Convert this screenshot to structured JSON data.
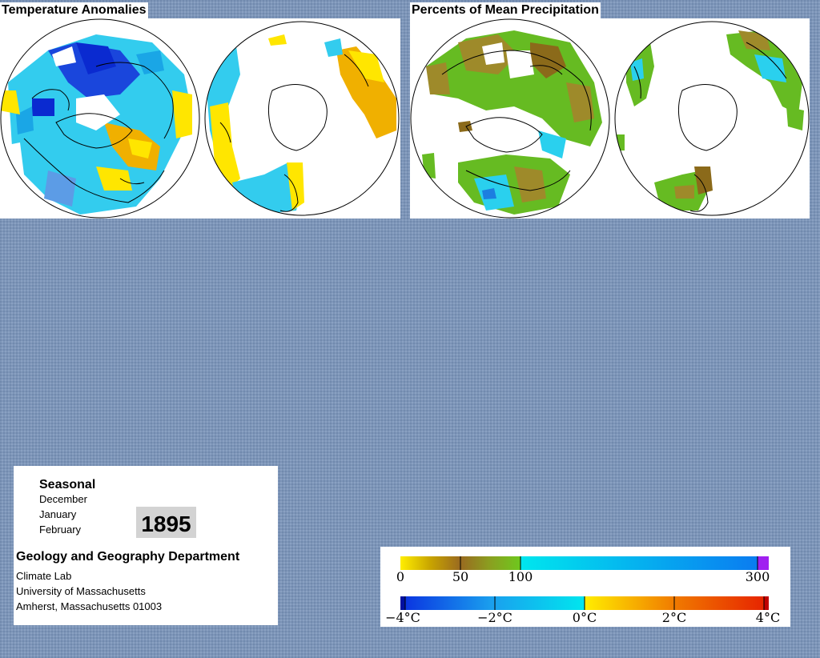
{
  "panels": {
    "temperature": {
      "title": "Temperature Anomalies",
      "hemispheres": [
        {
          "name": "northern-hemisphere",
          "palette": [
            "#33ccee",
            "#1aa6e6",
            "#0a3bd6",
            "#5c9ce6",
            "#ffe600",
            "#f0b000"
          ]
        },
        {
          "name": "southern-hemisphere",
          "palette": [
            "#33ccee",
            "#ffe600",
            "#f0b000"
          ]
        }
      ]
    },
    "precipitation": {
      "title": "Percents of Mean Precipitation",
      "hemispheres": [
        {
          "name": "northern-hemisphere",
          "palette": [
            "#66bb22",
            "#9e8a2a",
            "#8b6a1a",
            "#2ad0ee",
            "#5ad0ff",
            "#1c7ee0"
          ]
        },
        {
          "name": "southern-hemisphere",
          "palette": [
            "#66bb22",
            "#9e8a2a",
            "#8b6a1a",
            "#2ad0ee"
          ]
        }
      ]
    }
  },
  "info": {
    "season_title": "Seasonal",
    "months": [
      "December",
      "January",
      "February"
    ],
    "year": "1895",
    "department": "Geology and Geography Department",
    "address_lines": [
      "Climate Lab",
      "University of Massachusetts",
      "Amherst, Massachusetts 01003"
    ]
  },
  "legend": {
    "precipitation": {
      "colors": [
        "#ffee00",
        "#c8a400",
        "#9a6a20",
        "#6ec81e",
        "#00e6ee",
        "#0a7cf0",
        "#a020f0"
      ],
      "ticks": [
        {
          "label": "0",
          "value": 0
        },
        {
          "label": "50",
          "value": 50
        },
        {
          "label": "100",
          "value": 100
        },
        {
          "label": "300",
          "value": 300
        }
      ]
    },
    "temperature": {
      "colors": [
        "#0a30e0",
        "#1aa0ee",
        "#00e6ee",
        "#ffee00",
        "#f07800",
        "#e62000"
      ],
      "ticks": [
        {
          "label": "−4°C",
          "value": -4
        },
        {
          "label": "−2°C",
          "value": -2
        },
        {
          "label": "0°C",
          "value": 0
        },
        {
          "label": "2°C",
          "value": 2
        },
        {
          "label": "4°C",
          "value": 4
        }
      ]
    }
  }
}
